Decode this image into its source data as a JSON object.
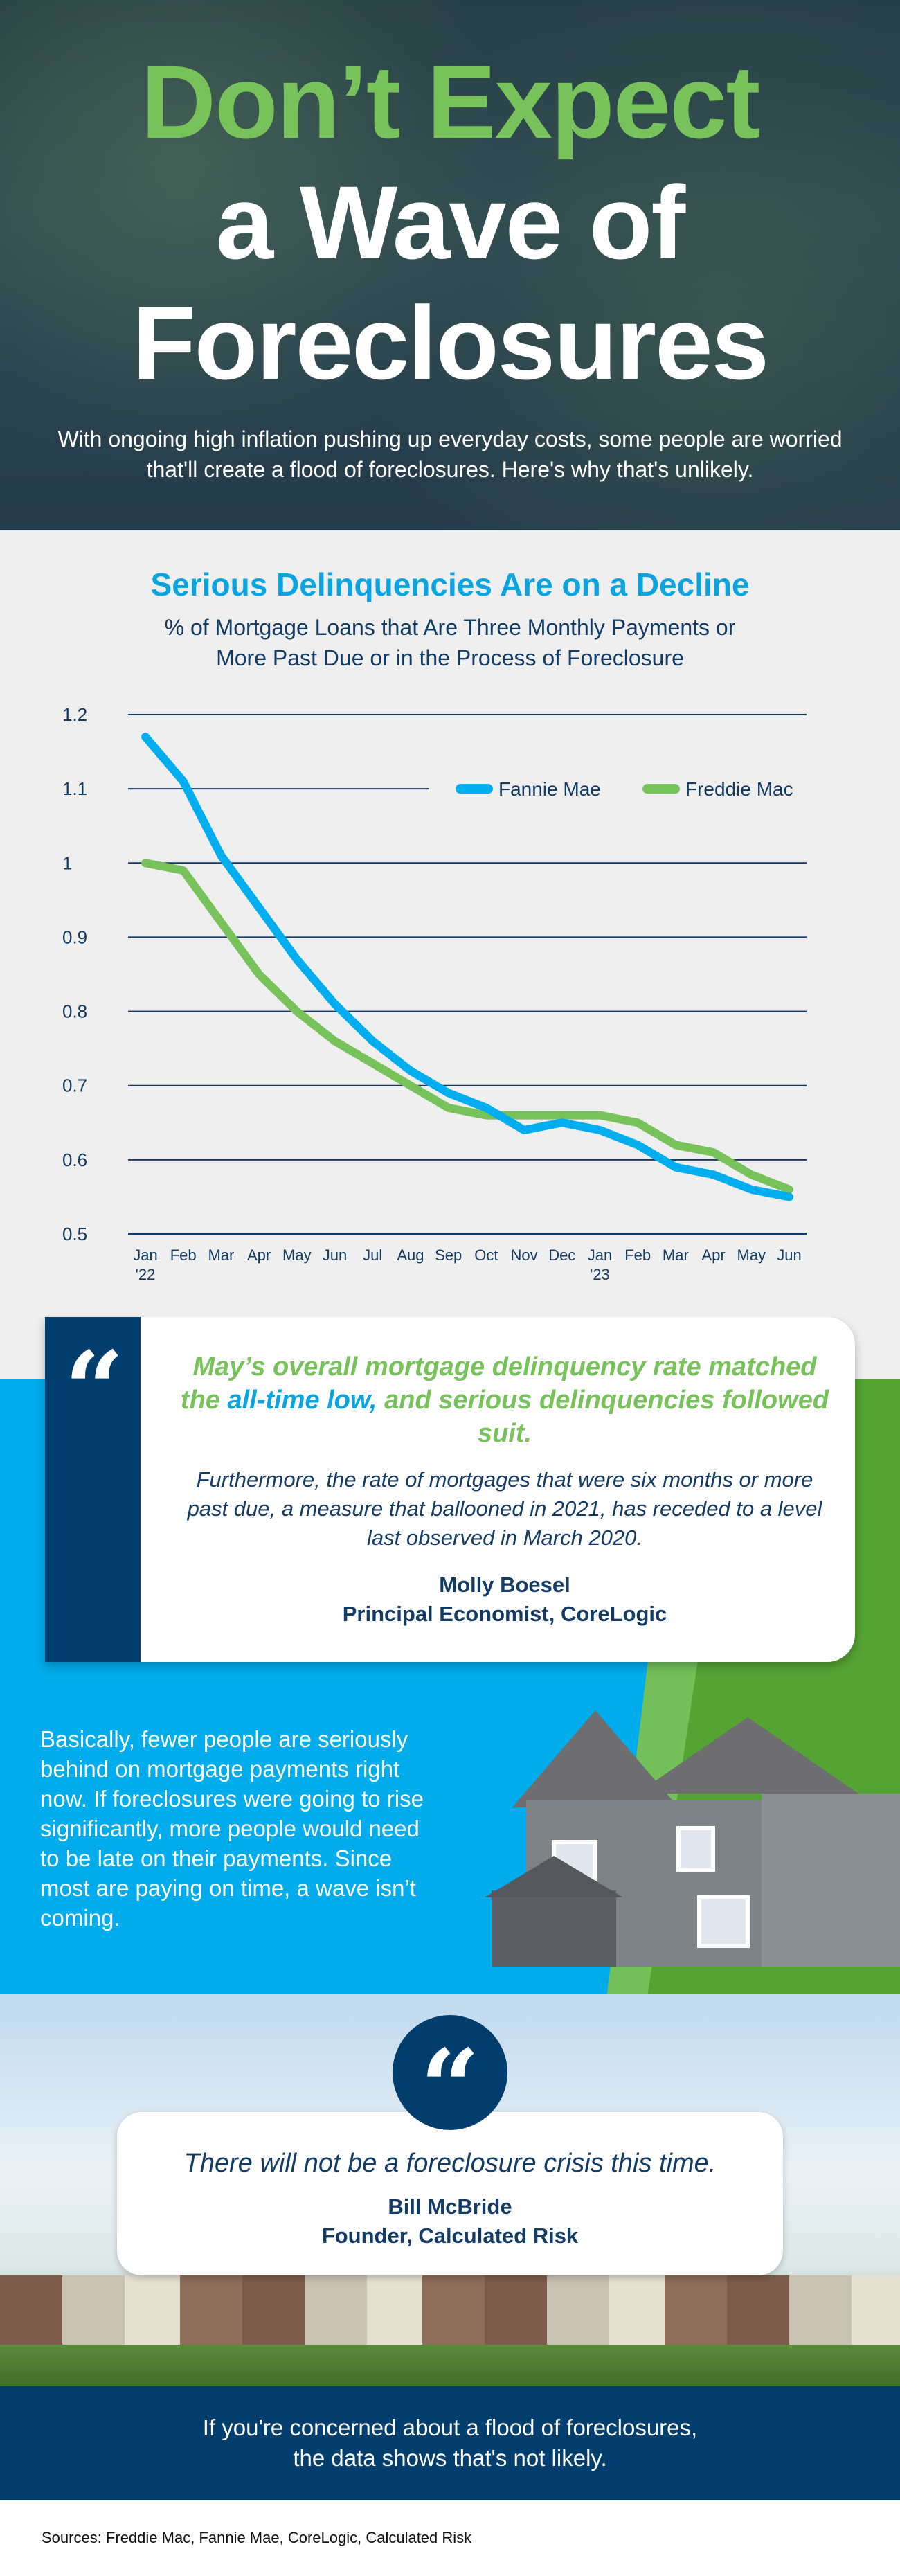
{
  "hero": {
    "title_line1": "Don’t Expect",
    "title_line2": "a Wave of",
    "title_line3": "Foreclosures",
    "subtitle": "With ongoing high inflation pushing up everyday costs, some people are worried that'll create a flood of foreclosures. Here's why that's unlikely."
  },
  "chart_data": {
    "type": "line",
    "title": "Serious Delinquencies Are on a Decline",
    "subtitle": "% of Mortgage Loans that Are Three Monthly Payments or More Past Due or in the Process of Foreclosure",
    "categories": [
      "Jan '22",
      "Feb",
      "Mar",
      "Apr",
      "May",
      "Jun",
      "Jul",
      "Aug",
      "Sep",
      "Oct",
      "Nov",
      "Dec",
      "Jan '23",
      "Feb",
      "Mar",
      "Apr",
      "May",
      "Jun"
    ],
    "tick_labels": [
      [
        "Jan",
        "'22"
      ],
      [
        "Feb"
      ],
      [
        "Mar"
      ],
      [
        "Apr"
      ],
      [
        "May"
      ],
      [
        "Jun"
      ],
      [
        "Jul"
      ],
      [
        "Aug"
      ],
      [
        "Sep"
      ],
      [
        "Oct"
      ],
      [
        "Nov"
      ],
      [
        "Dec"
      ],
      [
        "Jan",
        "'23"
      ],
      [
        "Feb"
      ],
      [
        "Mar"
      ],
      [
        "Apr"
      ],
      [
        "May"
      ],
      [
        "Jun"
      ]
    ],
    "ylim": [
      0.5,
      1.2
    ],
    "yticks": [
      "0.5",
      "0.6",
      "0.7",
      "0.8",
      "0.9",
      "1",
      "1.1",
      "1.2"
    ],
    "grid": true,
    "legend": "top-right",
    "series": [
      {
        "name": "Fannie Mae",
        "color": "#00aeef",
        "values": [
          1.17,
          1.11,
          1.01,
          0.94,
          0.87,
          0.81,
          0.76,
          0.72,
          0.69,
          0.67,
          0.64,
          0.65,
          0.64,
          0.62,
          0.59,
          0.58,
          0.56,
          0.55
        ]
      },
      {
        "name": "Freddie Mac",
        "color": "#77c25a",
        "values": [
          1.0,
          0.99,
          0.92,
          0.85,
          0.8,
          0.76,
          0.73,
          0.7,
          0.67,
          0.66,
          0.66,
          0.66,
          0.66,
          0.65,
          0.62,
          0.61,
          0.58,
          0.56
        ]
      }
    ]
  },
  "quote1": {
    "hl_a": "May’s overall mortgage delinquency rate matched the ",
    "hl_b": "all-time low,",
    "hl_c": " and serious delinquencies followed suit.",
    "body": "Furthermore, the rate of mortgages that were six months or more past due, a measure that ballooned in 2021, has receded to a level last observed in March 2020.",
    "name": "Molly Boesel",
    "role": "Principal Economist, CoreLogic",
    "mark": "“"
  },
  "explanation": "Basically, fewer people are seriously behind on mortgage payments right now. If foreclosures were going to rise significantly, more people would need to be late on their payments. Since most are paying on time, a wave isn’t coming.",
  "quote2": {
    "mark": "“",
    "text": "There will not be a foreclosure crisis this time.",
    "name": "Bill McBride",
    "role": "Founder, Calculated Risk"
  },
  "banner": "If you're concerned about a flood of foreclosures, the data shows that's not likely.",
  "sources": "Sources: Freddie Mac, Fannie Mae, CoreLogic, Calculated Risk"
}
